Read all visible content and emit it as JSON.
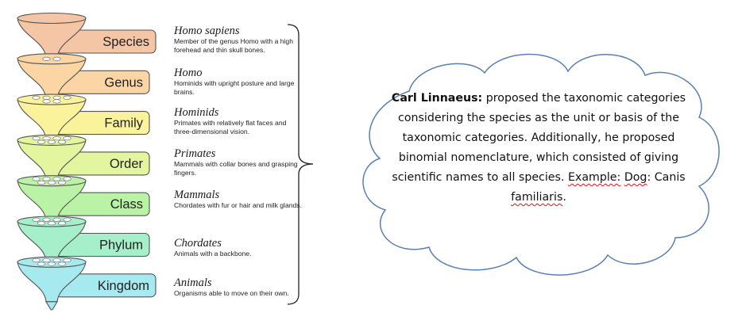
{
  "levels": [
    {
      "rank": "Species",
      "name": "Homo sapiens",
      "text": "Member of the genus Homo with a high forehead and thin skull bones.",
      "color": "#f4c6a5"
    },
    {
      "rank": "Genus",
      "name": "Homo",
      "text": "Hominids with upright posture and large brains.",
      "color": "#fbd5a4"
    },
    {
      "rank": "Family",
      "name": "Hominids",
      "text": "Primates with relatively flat faces and three-dimensional vision.",
      "color": "#fbf39c"
    },
    {
      "rank": "Order",
      "name": "Primates",
      "text": "Mammals with collar bones and grasping fingers.",
      "color": "#e3f59f"
    },
    {
      "rank": "Class",
      "name": "Mammals",
      "text": "Chordates with fur or hair and milk glands.",
      "color": "#baf2a6"
    },
    {
      "rank": "Phylum",
      "name": "Chordates",
      "text": "Animals with a backbone.",
      "color": "#a6efcb"
    },
    {
      "rank": "Kingdom",
      "name": "Animals",
      "text": "Organisms able to move on their own.",
      "color": "#a6e9ee"
    }
  ],
  "cloud": {
    "heading": "Carl Linnaeus:",
    "body": "proposed the taxonomic categories considering the species as the unit or basis of the taxonomic categories. Additionally, he proposed binomial nomenclature, which consisted of giving scientific names to all species.",
    "example_label": "Example:",
    "example_animal": "Dog",
    "example_sep": ": Canis",
    "example_species": "familiaris",
    "example_end": ".",
    "fill": "#ffffff",
    "stroke": "#5b7fb0"
  }
}
